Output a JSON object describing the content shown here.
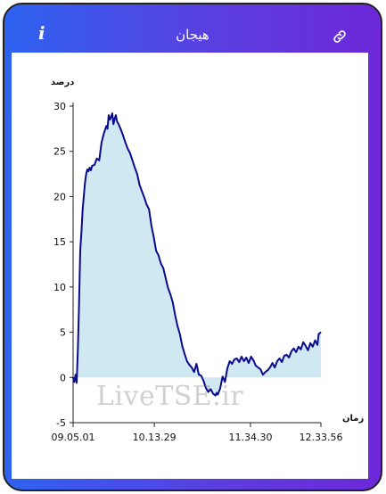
{
  "header": {
    "title": "هیجان",
    "info_icon": "i",
    "link_icon": "link-icon"
  },
  "colors": {
    "gradient_start": "#2e63f0",
    "gradient_end": "#6d28d9",
    "line": "#0a0a8c",
    "fill": "#cfe8f1"
  },
  "watermark": "LiveTSE.ir",
  "chart_data": {
    "type": "area",
    "ylabel": "درصد",
    "xlabel": "زمان",
    "ylim": [
      -5,
      30
    ],
    "yticks": [
      -5,
      0,
      5,
      10,
      15,
      20,
      25,
      30
    ],
    "xticks": [
      "09.05.01",
      "10.13.29",
      "11.34.30",
      "12.33.56"
    ],
    "xtick_times": [
      0,
      68.5,
      149.5,
      208.9
    ],
    "xlim": [
      0,
      208.9
    ],
    "series": [
      {
        "x": [
          0,
          1,
          1.5,
          2,
          3,
          4,
          5,
          6,
          7,
          8,
          9,
          10,
          11,
          12,
          13,
          14,
          15,
          16,
          18,
          20,
          22,
          24,
          26,
          28,
          29,
          30,
          31,
          32,
          33,
          34,
          35,
          36,
          37,
          38,
          40,
          42,
          44,
          46,
          48,
          50,
          52,
          54,
          56,
          58,
          60,
          62,
          64,
          66,
          68,
          70,
          72,
          74,
          76,
          78,
          80,
          82,
          84,
          86,
          88,
          90,
          92,
          94,
          96,
          98,
          100,
          102,
          104,
          106,
          108,
          110,
          112,
          114,
          116,
          118,
          120,
          121,
          122,
          124,
          126,
          128,
          130,
          132,
          134,
          136,
          138,
          140,
          142,
          144,
          146,
          148,
          150,
          152,
          154,
          156,
          158,
          160,
          162,
          164,
          166,
          168,
          170,
          172,
          174,
          176,
          178,
          180,
          182,
          184,
          186,
          188,
          190,
          192,
          194,
          196,
          198,
          200,
          202,
          204,
          206,
          207,
          208.9
        ],
        "y": [
          0,
          -0.5,
          -0.2,
          0.3,
          -0.6,
          3,
          8,
          14,
          16,
          18.5,
          20,
          21.5,
          22.5,
          23,
          22.8,
          23.2,
          22.9,
          23.4,
          23.5,
          24.2,
          24.0,
          26.0,
          27.0,
          27.8,
          27.5,
          29.0,
          28.5,
          28.8,
          29.2,
          28.0,
          28.6,
          29.0,
          28.3,
          28.1,
          27.5,
          26.8,
          26.0,
          25.3,
          24.8,
          24.0,
          23.2,
          22.5,
          21.3,
          20.6,
          19.9,
          19.1,
          18.6,
          16.8,
          15.5,
          14.0,
          13.5,
          12.6,
          12.1,
          11.0,
          9.9,
          9.2,
          8.3,
          6.9,
          5.7,
          4.8,
          3.5,
          2.6,
          1.8,
          1.4,
          1.1,
          0.6,
          1.5,
          0.3,
          0.2,
          -0.4,
          -1.2,
          -1.6,
          -1.3,
          -1.8,
          -2.0,
          -1.7,
          -1.9,
          -1.2,
          0.1,
          -0.5,
          1.0,
          1.8,
          1.5,
          2.0,
          2.1,
          1.7,
          2.3,
          1.8,
          2.2,
          1.6,
          2.3,
          1.9,
          1.3,
          1.1,
          0.9,
          0.3,
          0.6,
          0.8,
          1.1,
          1.6,
          1.1,
          1.8,
          2.1,
          1.7,
          2.4,
          2.5,
          2.2,
          2.9,
          3.2,
          2.8,
          3.4,
          3.1,
          3.9,
          3.5,
          3.0,
          3.8,
          3.4,
          4.1,
          3.6,
          4.8,
          5.0
        ]
      }
    ]
  }
}
